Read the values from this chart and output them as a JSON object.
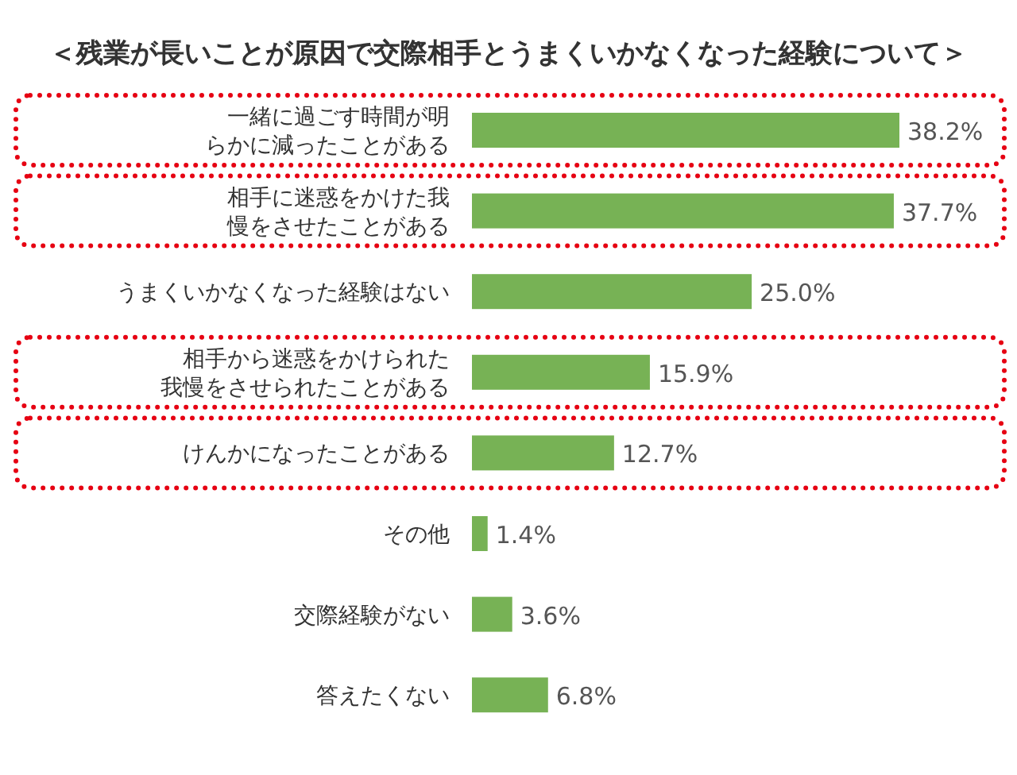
{
  "chart_data": {
    "type": "bar",
    "orientation": "horizontal",
    "title": "＜残業が長いことが原因で交際相手とうまくいかなくなった経験について＞",
    "categories": [
      "一緒に過ごす時間が明らかに減ったことがある",
      "相手に迷惑をかけた我慢をさせたことがある",
      "うまくいかなくなった経験はない",
      "相手から迷惑をかけられた我慢をさせられたことがある",
      "けんかになったことがある",
      "その他",
      "交際経験がない",
      "答えたくない"
    ],
    "values": [
      38.2,
      37.7,
      25.0,
      15.9,
      12.7,
      1.4,
      3.6,
      6.8
    ],
    "value_labels": [
      "38.2%",
      "37.7%",
      "25.0%",
      "15.9%",
      "12.7%",
      "1.4%",
      "3.6%",
      "6.8%"
    ],
    "color": "#77b255"
  }
}
